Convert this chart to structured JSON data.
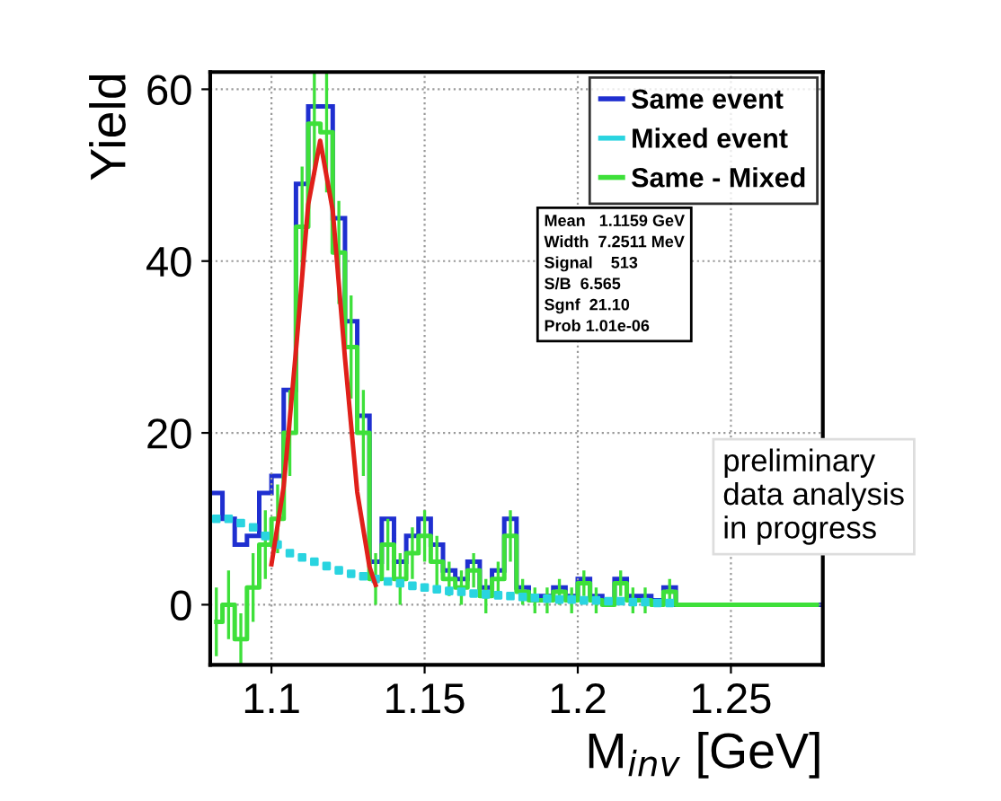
{
  "chart_data": {
    "type": "histogram",
    "xlabel": "M$_{inv}$ [GeV]",
    "ylabel": "Yield",
    "bins": [
      1.08,
      1.084,
      1.088,
      1.092,
      1.096,
      1.1,
      1.104,
      1.108,
      1.112,
      1.116,
      1.12,
      1.124,
      1.128,
      1.132,
      1.136,
      1.14,
      1.144,
      1.148,
      1.152,
      1.156,
      1.16,
      1.164,
      1.168,
      1.172,
      1.176,
      1.18,
      1.184,
      1.188,
      1.192,
      1.196,
      1.2,
      1.204,
      1.208,
      1.212,
      1.216,
      1.22,
      1.224,
      1.228,
      1.232,
      1.236,
      1.24,
      1.244,
      1.248,
      1.252,
      1.256,
      1.26,
      1.264,
      1.268,
      1.272,
      1.276,
      1.28
    ],
    "series": [
      {
        "name": "Same event",
        "color": "#1f2fd0",
        "values": [
          13,
          10,
          7,
          8,
          13,
          15,
          25,
          49,
          58,
          58,
          45,
          33,
          22,
          5,
          10,
          5,
          8,
          10,
          7,
          4,
          3,
          5,
          2,
          4,
          10,
          2,
          1,
          1,
          2,
          1,
          3,
          1,
          0.5,
          3,
          1,
          1,
          0.5,
          2,
          0,
          0,
          0,
          0,
          0,
          0,
          0,
          0,
          0,
          0,
          0,
          0
        ]
      },
      {
        "name": "Mixed event",
        "type": "scatter",
        "marker": "square",
        "color": "#2ad4e0",
        "x": [
          1.082,
          1.086,
          1.09,
          1.094,
          1.098,
          1.102,
          1.106,
          1.11,
          1.114,
          1.118,
          1.122,
          1.126,
          1.13,
          1.134,
          1.138,
          1.142,
          1.146,
          1.15,
          1.154,
          1.158,
          1.162,
          1.166,
          1.17,
          1.174,
          1.178,
          1.182,
          1.186,
          1.19,
          1.194,
          1.198,
          1.202,
          1.206,
          1.21,
          1.214,
          1.218,
          1.222,
          1.226,
          1.23
        ],
        "values": [
          10,
          10,
          9.5,
          9,
          8,
          7,
          6,
          5.5,
          5,
          4.5,
          4,
          3.6,
          3.3,
          3,
          2.7,
          2.5,
          2.2,
          2,
          1.8,
          1.6,
          1.5,
          1.3,
          1.2,
          1.1,
          1,
          0.9,
          0.8,
          0.7,
          0.6,
          0.6,
          0.5,
          0.5,
          0.4,
          0.4,
          0.3,
          0.3,
          0.2,
          0.2
        ]
      },
      {
        "name": "Same - Mixed",
        "type": "step",
        "x": [
          1.082,
          1.086,
          1.09,
          1.094,
          1.098,
          1.102,
          1.106,
          1.11,
          1.114,
          1.118,
          1.122,
          1.126,
          1.13,
          1.134,
          1.138,
          1.142,
          1.146,
          1.15,
          1.154,
          1.158,
          1.162,
          1.166,
          1.17,
          1.174,
          1.178,
          1.182,
          1.186,
          1.19,
          1.194,
          1.198,
          1.202,
          1.206,
          1.21,
          1.214,
          1.218,
          1.222,
          1.226,
          1.23,
          1.234,
          1.238,
          1.242,
          1.246,
          1.25,
          1.254,
          1.258,
          1.262,
          1.266,
          1.27,
          1.274,
          1.278
        ],
        "color": "#3ee03a",
        "values": [
          -2,
          0,
          -4,
          2,
          7,
          10,
          20,
          44,
          56,
          55,
          41,
          30,
          20,
          3,
          7,
          3,
          6,
          8,
          5,
          3,
          2,
          4,
          1,
          3,
          8,
          1.5,
          0.5,
          0.5,
          1.5,
          0.5,
          2.5,
          0.5,
          0,
          2.5,
          0.5,
          0.5,
          0,
          1.5,
          0,
          0,
          0,
          0,
          0,
          0,
          0,
          0,
          0,
          0,
          0,
          0
        ],
        "errors": [
          4,
          4,
          3,
          4,
          4,
          4,
          5,
          7,
          6,
          7,
          6,
          6,
          5,
          3,
          3,
          3,
          3,
          3,
          3,
          2,
          2,
          2,
          2,
          2,
          3,
          1.5,
          1.5,
          1.5,
          1.5,
          1.5,
          1.5,
          1.5,
          null,
          1.5,
          1.5,
          1.5,
          null,
          1.5,
          null,
          null,
          null,
          null,
          null,
          null,
          null,
          null,
          null,
          null,
          null,
          null
        ]
      },
      {
        "type": "line",
        "color": "#e0201a",
        "x": [
          1.1,
          1.104,
          1.108,
          1.112,
          1.1159,
          1.12,
          1.124,
          1.128,
          1.132,
          1.134
        ],
        "values": [
          4.7,
          13.8,
          29.6,
          46.6,
          54,
          45.9,
          28.7,
          13.1,
          4.4,
          2.3
        ]
      }
    ],
    "xlim": [
      1.08,
      1.28
    ],
    "xticks": [
      1.1,
      1.15,
      1.2,
      1.25
    ],
    "ylim": [
      -7,
      62
    ],
    "yticks": [
      0,
      20,
      40,
      60
    ],
    "grid": true,
    "legend": "top right",
    "annotations": [
      "Mean   1.1159 GeV\nWidth  7.2511 MeV\nSignal    513\nS/B  6.565\nSgnf  21.10\nProb 1.01e-06",
      "preliminary\ndata analysis\nin progress"
    ]
  }
}
